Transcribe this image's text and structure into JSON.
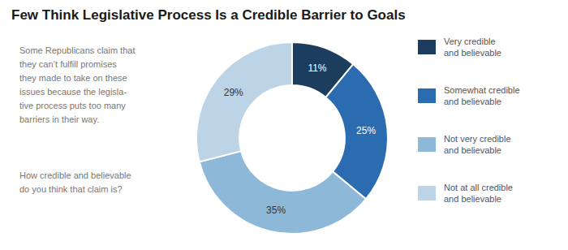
{
  "chart_data": {
    "type": "pie",
    "title": "Few Think Legislative Process Is a Credible Barrier to Goals",
    "annotations": [
      "Some Republicans claim that\nthey can’t fulfill promises\nthey made to take on these\nissues because the legisla-\ntive process puts too many\nbarriers in their way.",
      "How credible and believable\ndo you think that claim is?"
    ],
    "categories": [
      "Very credible\nand believable",
      "Somewhat credible\nand believable",
      "Not very credible\nand believable",
      "Not at all credible\nand believable"
    ],
    "values": [
      11,
      25,
      35,
      29
    ],
    "value_labels": [
      "11%",
      "25%",
      "35%",
      "29%"
    ],
    "data_labels": true,
    "colors": [
      "#1c3d5e",
      "#2b6cb0",
      "#8eb8d8",
      "#bdd3e6"
    ]
  }
}
